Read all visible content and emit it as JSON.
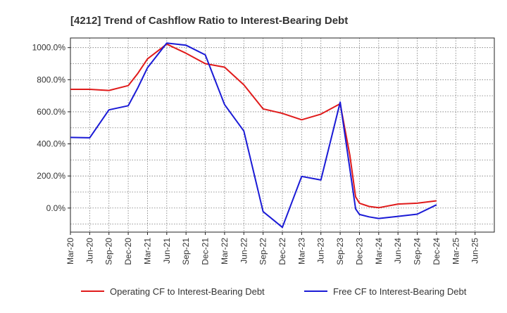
{
  "chart_data": {
    "type": "line",
    "title": "[4212]  Trend of Cashflow Ratio to Interest-Bearing Debt",
    "xlabel": "",
    "ylabel": "",
    "categories": [
      "Mar-20",
      "Jun-20",
      "Sep-20",
      "Dec-20",
      "Mar-21",
      "Jun-21",
      "Sep-21",
      "Dec-21",
      "Mar-22",
      "Jun-22",
      "Sep-22",
      "Dec-22",
      "Mar-23",
      "Jun-23",
      "Sep-23",
      "Dec-23",
      "Mar-24",
      "Jun-24",
      "Sep-24",
      "Dec-24",
      "Mar-25",
      "Jun-25"
    ],
    "x": [
      0,
      1,
      2,
      3,
      3.5,
      4,
      5,
      6,
      7,
      8,
      9,
      10,
      11,
      12,
      13,
      14,
      14.5,
      14.8,
      15,
      15.5,
      16,
      17,
      18,
      19,
      20
    ],
    "series": [
      {
        "name": "Operating CF to Interest-Bearing Debt",
        "color": "#e01b1b",
        "values": [
          740,
          740,
          733,
          763,
          840,
          930,
          1022,
          965,
          900,
          878,
          768,
          618,
          590,
          550,
          585,
          650,
          330,
          70,
          30,
          10,
          2,
          25,
          30,
          45,
          null
        ]
      },
      {
        "name": "Free CF to Interest-Bearing Debt",
        "color": "#1a1ad6",
        "values": [
          440,
          438,
          612,
          638,
          750,
          875,
          1028,
          1015,
          955,
          645,
          480,
          -22,
          -120,
          197,
          175,
          660,
          245,
          -5,
          -40,
          -55,
          -65,
          -52,
          -38,
          20,
          null
        ]
      }
    ],
    "ylim": [
      -150,
      1060
    ],
    "yticks": [
      0,
      200,
      400,
      600,
      800,
      1000
    ],
    "ytick_labels": [
      "0.0%",
      "200.0%",
      "400.0%",
      "600.0%",
      "800.0%",
      "1000.0%"
    ],
    "grid": true,
    "legend": "bottom"
  }
}
